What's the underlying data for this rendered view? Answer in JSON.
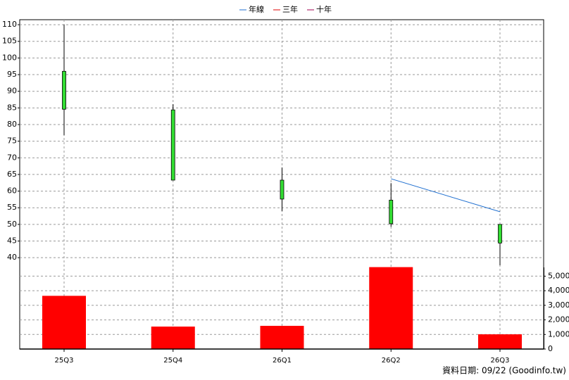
{
  "chart_data": [
    {
      "type": "candlestick",
      "categories": [
        "25Q3",
        "25Q4",
        "26Q1",
        "26Q2",
        "26Q3"
      ],
      "open": [
        96.0,
        84.4,
        63.3,
        57.3,
        50.0
      ],
      "high": [
        110.0,
        86.1,
        67.1,
        62.4,
        50.0
      ],
      "low": [
        76.8,
        63.3,
        54.0,
        49.3,
        37.7
      ],
      "close": [
        84.6,
        63.3,
        57.6,
        50.2,
        44.4
      ],
      "color": "#33dd33",
      "series": [
        {
          "name": "年線",
          "color": "#1f6fd0",
          "values": [
            null,
            null,
            null,
            63.7,
            53.8
          ]
        },
        {
          "name": "三年",
          "color": "#e00000",
          "values": [
            null,
            null,
            null,
            null,
            null
          ]
        },
        {
          "name": "十年",
          "color": "#a00050",
          "values": [
            null,
            null,
            null,
            null,
            null
          ]
        }
      ],
      "ylim": [
        37.5,
        111.5
      ],
      "yticks": [
        40,
        45,
        50,
        55,
        60,
        65,
        70,
        75,
        80,
        85,
        90,
        95,
        100,
        105,
        110
      ],
      "grid": true,
      "legend": "top",
      "source": "資料日期: 09/22  (Goodinfo.tw)"
    },
    {
      "type": "bar",
      "values": [
        3650,
        1540,
        1590,
        5620,
        1010
      ],
      "color": "#ff0000",
      "ylim": [
        0,
        5600
      ],
      "yticks": [
        0,
        {
          "value": 1000,
          "label": "1,000"
        },
        {
          "value": 2000,
          "label": "2,000"
        },
        {
          "value": 3000,
          "label": "3,000"
        },
        {
          "value": 4000,
          "label": "4,000"
        },
        {
          "value": 5000,
          "label": "5,000"
        }
      ],
      "grid": true
    }
  ]
}
